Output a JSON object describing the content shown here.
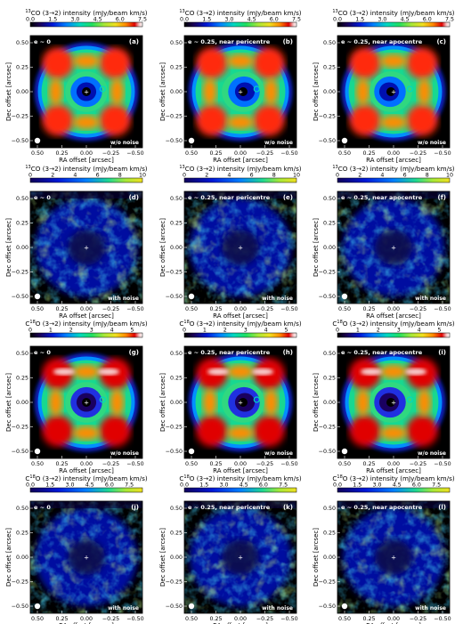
{
  "figure": {
    "panel_letters": [
      "a",
      "b",
      "c",
      "d",
      "e",
      "f",
      "g",
      "h",
      "i",
      "j",
      "k",
      "l"
    ],
    "corner_tags": [
      "e ~ 0",
      "e ~ 0.25, near pericentre",
      "e ~ 0.25, near apocentre"
    ],
    "noise_tags": {
      "without": "w/o noise",
      "with": "with noise"
    },
    "axis_labels": {
      "x": "RA offset [arcsec]",
      "y": "Dec offset [arcsec]"
    },
    "x_ticks": [
      "0.50",
      "0.25",
      "0.00",
      "−0.25",
      "−0.50"
    ],
    "y_ticks": [
      "0.50",
      "0.25",
      "0.00",
      "−0.25",
      "−0.50"
    ],
    "rows": [
      {
        "colorbar_title_pre": "13",
        "colorbar_title_main": "CO (3→2) intensity (mJy/beam km/s)",
        "colorbar_ticks": [
          "0.0",
          "1.5",
          "3.0",
          "4.5",
          "6.0",
          "7.5"
        ],
        "colorbar_range": [
          0,
          7.5
        ],
        "noise": "without",
        "letters": [
          "a",
          "b",
          "c"
        ]
      },
      {
        "colorbar_title_pre": "13",
        "colorbar_title_main": "CO (3→2) intensity (mJy/beam km/s)",
        "colorbar_ticks": [
          "0",
          "2",
          "4",
          "6",
          "8",
          "10"
        ],
        "colorbar_range": [
          0,
          10
        ],
        "noise": "with",
        "letters": [
          "d",
          "e",
          "f"
        ]
      },
      {
        "colorbar_title_pre": "18",
        "colorbar_title_main": "O (3→2) intensity (mJy/beam km/s)",
        "colorbar_ticks": [
          "0",
          "1",
          "2",
          "3",
          "4",
          "5"
        ],
        "colorbar_range": [
          0,
          5.5
        ],
        "noise": "without",
        "letters": [
          "g",
          "h",
          "i"
        ]
      },
      {
        "colorbar_title_pre": "18",
        "colorbar_title_main": "O (3→2) intensity (mJy/beam km/s)",
        "colorbar_ticks": [
          "0.0",
          "1.5",
          "3.0",
          "4.5",
          "6.0",
          "7.5"
        ],
        "colorbar_range": [
          0,
          8.5
        ],
        "noise": "with",
        "letters": [
          "j",
          "k",
          "l"
        ]
      }
    ],
    "colormap": [
      "#000000",
      "#1a0050",
      "#0018d8",
      "#0080ff",
      "#00d8c0",
      "#20e060",
      "#a8e838",
      "#f0e020",
      "#ff8c00",
      "#e00000",
      "#f4c0c0",
      "#ffffff"
    ]
  }
}
